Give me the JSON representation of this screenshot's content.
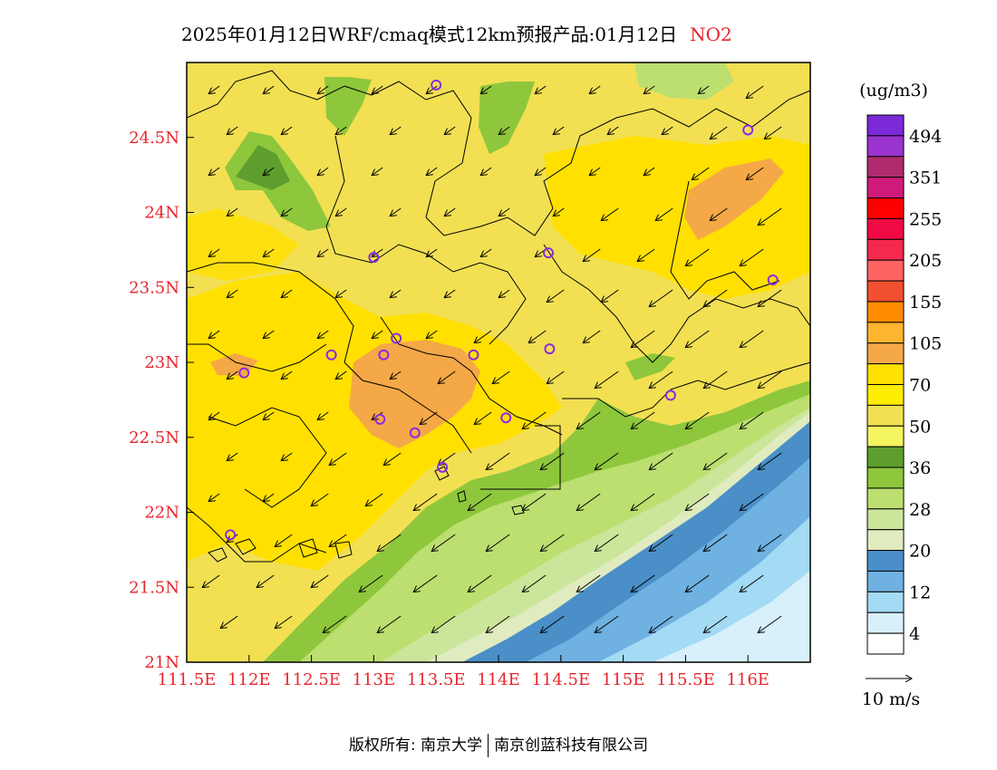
{
  "title": {
    "main": "2025年01月12日WRF/cmaq模式12km预报产品:01月12日",
    "species": "NO2"
  },
  "axes": {
    "x_ticks": [
      "111.5E",
      "112E",
      "112.5E",
      "113E",
      "113.5E",
      "114E",
      "114.5E",
      "115E",
      "115.5E",
      "116E"
    ],
    "y_ticks": [
      "24.5N",
      "24N",
      "23.5N",
      "23N",
      "22.5N",
      "22N",
      "21.5N",
      "21N"
    ]
  },
  "colorbar": {
    "unit": "(ug/m3)",
    "labels": [
      "494",
      "351",
      "255",
      "205",
      "155",
      "105",
      "70",
      "50",
      "36",
      "28",
      "20",
      "12",
      "4"
    ],
    "colors": [
      "#7a2ad6",
      "#9b33cf",
      "#b02a6e",
      "#d01a7a",
      "#ff0000",
      "#f20a45",
      "#f5294d",
      "#ff6464",
      "#f05030",
      "#ff8c00",
      "#fdb42f",
      "#f5a847",
      "#ffe000",
      "#ffed00",
      "#f2e052",
      "#f5f560",
      "#5e9e2e",
      "#8ec73c",
      "#bcdf70",
      "#cbe69a",
      "#e0ebc0",
      "#4a8fc8",
      "#6fb1e1",
      "#a3daf4",
      "#d8f0fb",
      "#ffffff"
    ]
  },
  "wind_legend": {
    "label": "10 m/s"
  },
  "footer": {
    "left": "版权所有: 南京大学",
    "right": "南京创蓝科技有限公司"
  },
  "chart_data": {
    "type": "map",
    "variable": "NO2",
    "x_range": [
      "111.5E",
      "116.5E"
    ],
    "y_range": [
      "21N",
      "25N"
    ],
    "stations": [
      {
        "lon": 113.5,
        "lat": 24.85
      },
      {
        "lon": 116.0,
        "lat": 24.55
      },
      {
        "lon": 113.0,
        "lat": 23.7
      },
      {
        "lon": 114.4,
        "lat": 23.73
      },
      {
        "lon": 116.2,
        "lat": 23.55
      },
      {
        "lon": 113.18,
        "lat": 23.16
      },
      {
        "lon": 112.66,
        "lat": 23.05
      },
      {
        "lon": 113.08,
        "lat": 23.05
      },
      {
        "lon": 113.8,
        "lat": 23.05
      },
      {
        "lon": 114.41,
        "lat": 23.09
      },
      {
        "lon": 111.96,
        "lat": 22.93
      },
      {
        "lon": 115.38,
        "lat": 22.78
      },
      {
        "lon": 113.05,
        "lat": 22.62
      },
      {
        "lon": 113.33,
        "lat": 22.53
      },
      {
        "lon": 114.06,
        "lat": 22.63
      },
      {
        "lon": 113.55,
        "lat": 22.3
      },
      {
        "lon": 111.85,
        "lat": 21.85
      }
    ]
  }
}
